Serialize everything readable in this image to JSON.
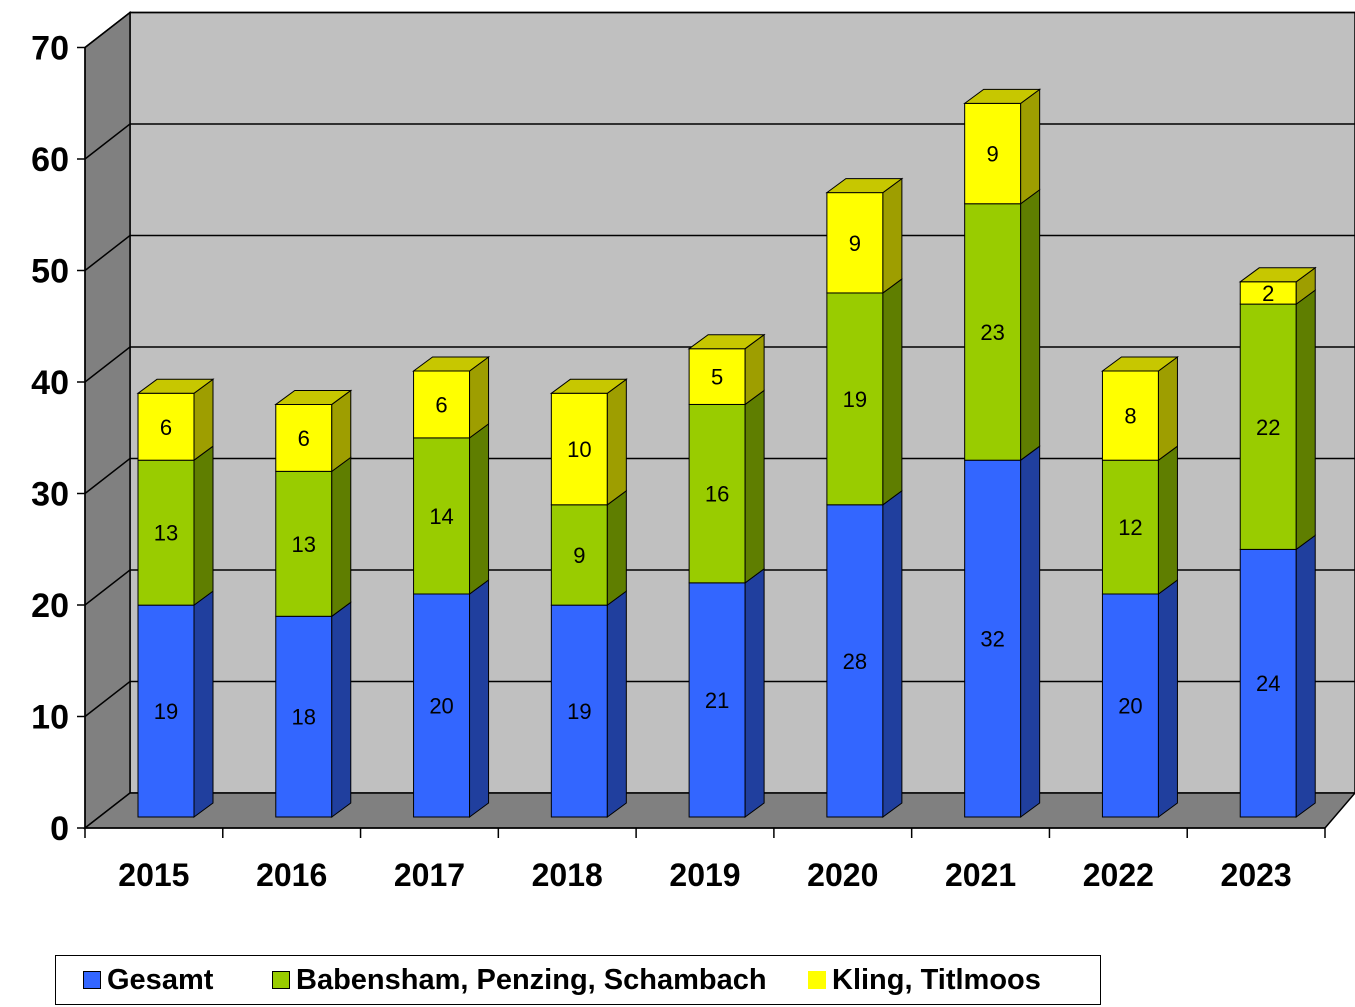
{
  "chart_data": {
    "type": "bar",
    "stacked": true,
    "three_d": true,
    "categories": [
      "2015",
      "2016",
      "2017",
      "2018",
      "2019",
      "2020",
      "2021",
      "2022",
      "2023"
    ],
    "series": [
      {
        "name": "Gesamt",
        "color": "#3366ff",
        "values": [
          19,
          18,
          20,
          19,
          21,
          28,
          32,
          20,
          24
        ]
      },
      {
        "name": "Babensham, Penzing, Schambach",
        "color": "#99cc00",
        "values": [
          13,
          13,
          14,
          9,
          16,
          19,
          23,
          12,
          22
        ]
      },
      {
        "name": "Kling, Titlmoos",
        "color": "#ffff00",
        "values": [
          6,
          6,
          6,
          10,
          5,
          9,
          9,
          8,
          2
        ]
      }
    ],
    "title": "",
    "xlabel": "",
    "ylabel": "",
    "ylim": [
      0,
      70
    ],
    "yticks": [
      0,
      10,
      20,
      30,
      40,
      50,
      60,
      70
    ],
    "grid": true,
    "legend_position": "bottom",
    "wall_color": "#c0c0c0",
    "side_wall_color": "#808080",
    "floor_color": "#808080"
  }
}
